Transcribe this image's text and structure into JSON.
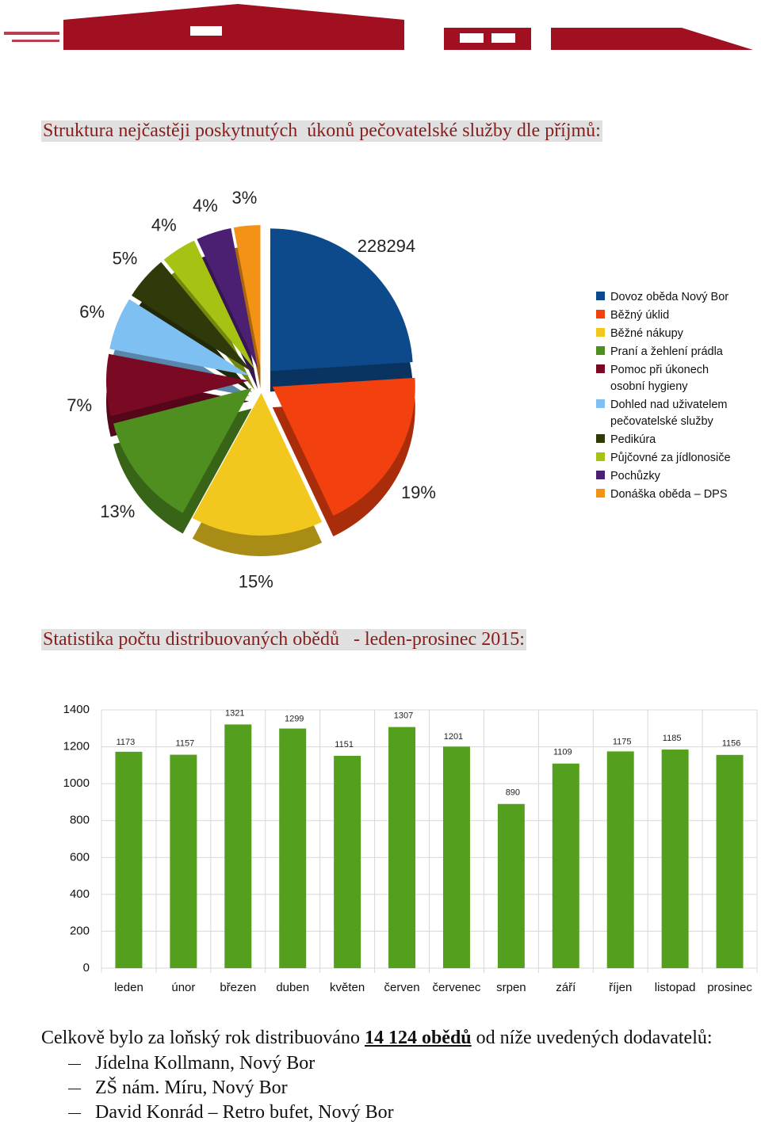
{
  "pie_section": {
    "heading": "Struktura nejčastěji poskytnutých  úkonů pečovatelské služby dle příjmů:",
    "chart_data": {
      "type": "pie",
      "categories": [
        "Dovoz oběda Nový Bor",
        "Běžný úklid",
        "Běžné nákupy",
        "Praní a žehlení prádla",
        "Pomoc při úkonech osobní hygieny",
        "Dohled nad uživatelem pečovatelské služby",
        "Pedikúra",
        "Půjčovné za jídlonosiče",
        "Pochůzky",
        "Donáška oběda – DPS"
      ],
      "values": [
        24,
        19,
        15,
        13,
        7,
        6,
        5,
        4,
        4,
        3
      ],
      "value_labels": [
        null,
        "19%",
        "15%",
        "13%",
        "7%",
        "6%",
        "5%",
        "4%",
        "4%",
        "3%"
      ],
      "annotation": "228294",
      "colors": [
        "#0d4a8c",
        "#f2400f",
        "#f2c81e",
        "#4f8f1f",
        "#7a0a24",
        "#7fc0f2",
        "#2f3a0b",
        "#a6c213",
        "#4b1f72",
        "#f39214"
      ],
      "legend": "right"
    }
  },
  "bar_section": {
    "heading": "Statistika počtu distribuovaných obědů   - leden-prosinec 2015:",
    "chart_data": {
      "type": "bar",
      "categories": [
        "leden",
        "únor",
        "březen",
        "duben",
        "květen",
        "červen",
        "červenec",
        "srpen",
        "září",
        "říjen",
        "listopad",
        "prosinec"
      ],
      "values": [
        1173,
        1157,
        1321,
        1299,
        1151,
        1307,
        1201,
        890,
        1109,
        1175,
        1185,
        1156
      ],
      "color": "#54a01e",
      "ylim": [
        0,
        1400
      ],
      "yticks": [
        0,
        200,
        400,
        600,
        800,
        1000,
        1200,
        1400
      ],
      "grid": true
    }
  },
  "summary": {
    "before": "Celkově bylo za loňský rok distribuováno ",
    "emphasis": "14 124 obědů",
    "after": " od níže uvedených dodavatelů:",
    "items": [
      "Jídelna Kollmann, Nový Bor",
      "ZŠ nám. Míru, Nový Bor",
      "David Konrád – Retro bufet, Nový Bor"
    ]
  }
}
